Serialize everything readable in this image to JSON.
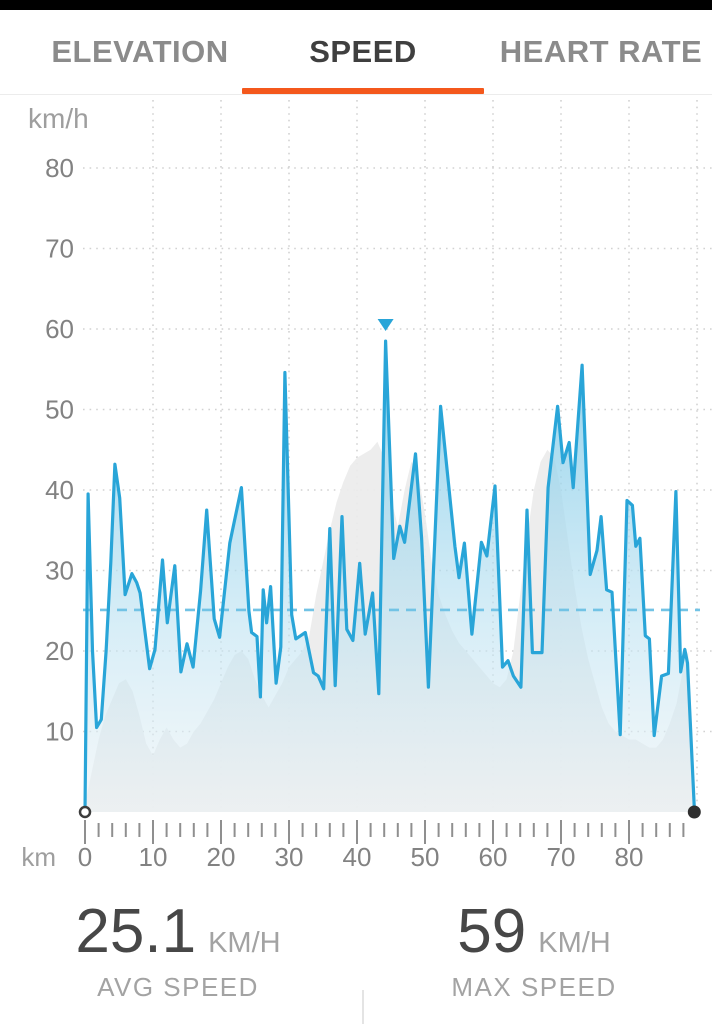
{
  "tabs": {
    "items": [
      {
        "label": "ELEVATION",
        "active": false
      },
      {
        "label": "SPEED",
        "active": true
      },
      {
        "label": "HEART RATE",
        "active": false
      }
    ]
  },
  "colors": {
    "accent_orange": "#f4581c",
    "line_blue": "#29a5d8",
    "fill_blue_top": "#7ecae8",
    "fill_blue_bottom": "#ecf2f5",
    "elevation_gray": "#ebebeb",
    "avg_dash_blue": "#72c3e5",
    "grid_gray": "#d2d2d2",
    "tick_gray": "#8f8f8f",
    "axis_text": "#828282",
    "unit_text": "#9e9e9e",
    "start_dot_stroke": "#3c3c3c",
    "end_dot_fill": "#2f2f2f"
  },
  "chart_data": {
    "type": "area",
    "title": "",
    "xlabel": "km",
    "ylabel": "km/h",
    "xlim": [
      0,
      89.6
    ],
    "ylim": [
      0,
      88
    ],
    "grid": "dotted",
    "y_ticks": [
      80,
      70,
      60,
      50,
      40,
      30,
      20,
      10
    ],
    "x_ticks": [
      0,
      10,
      20,
      30,
      40,
      50,
      60,
      70,
      80
    ],
    "x_minor_tick_step_km": 2,
    "x_minor_tick_max_km": 88,
    "avg_line_value": 25.1,
    "marker": {
      "name": "max-speed-marker",
      "km": 44.2,
      "value": 59
    },
    "start_point_km": 0,
    "end_point_km": 89.6,
    "series": [
      {
        "name": "elevation-ghost",
        "points": [
          [
            0,
            1
          ],
          [
            1,
            5
          ],
          [
            2,
            9
          ],
          [
            3,
            12
          ],
          [
            4,
            14
          ],
          [
            5,
            16
          ],
          [
            6,
            16.5
          ],
          [
            7,
            15
          ],
          [
            8,
            12
          ],
          [
            9,
            8.5
          ],
          [
            10,
            7
          ],
          [
            11,
            9
          ],
          [
            12,
            10.5
          ],
          [
            13,
            9
          ],
          [
            14,
            8
          ],
          [
            15,
            8.5
          ],
          [
            16,
            10
          ],
          [
            17,
            11
          ],
          [
            18,
            12.5
          ],
          [
            19,
            14
          ],
          [
            20,
            16
          ],
          [
            21,
            18
          ],
          [
            22,
            19.5
          ],
          [
            23,
            20
          ],
          [
            24,
            19
          ],
          [
            25,
            16.5
          ],
          [
            26,
            14.5
          ],
          [
            27,
            13
          ],
          [
            28,
            14.5
          ],
          [
            29,
            16
          ],
          [
            30,
            18
          ],
          [
            31,
            19
          ],
          [
            32,
            20
          ],
          [
            33,
            22
          ],
          [
            34,
            27
          ],
          [
            35,
            31
          ],
          [
            36,
            35
          ],
          [
            37,
            38.5
          ],
          [
            38,
            41
          ],
          [
            39,
            43
          ],
          [
            40,
            44
          ],
          [
            41,
            44.5
          ],
          [
            42,
            45
          ],
          [
            43,
            46
          ],
          [
            44,
            44
          ],
          [
            45,
            39
          ],
          [
            46,
            35.5
          ],
          [
            47,
            40
          ],
          [
            48,
            43.5
          ],
          [
            49,
            42
          ],
          [
            50,
            37
          ],
          [
            51,
            31
          ],
          [
            52,
            27
          ],
          [
            53,
            24.5
          ],
          [
            54,
            22.5
          ],
          [
            55,
            21
          ],
          [
            56,
            20
          ],
          [
            57,
            19
          ],
          [
            58,
            18
          ],
          [
            59,
            17
          ],
          [
            60,
            16
          ],
          [
            61,
            15.5
          ],
          [
            62,
            16.5
          ],
          [
            63,
            20
          ],
          [
            64,
            27
          ],
          [
            65,
            34
          ],
          [
            66,
            40
          ],
          [
            67,
            43.5
          ],
          [
            68,
            45
          ],
          [
            69,
            44
          ],
          [
            70,
            40
          ],
          [
            71,
            34
          ],
          [
            72,
            28
          ],
          [
            73,
            23
          ],
          [
            74,
            19
          ],
          [
            75,
            16
          ],
          [
            76,
            13
          ],
          [
            77,
            11
          ],
          [
            78,
            10
          ],
          [
            79,
            9.5
          ],
          [
            80,
            9
          ],
          [
            81,
            9
          ],
          [
            82,
            8.5
          ],
          [
            83,
            8
          ],
          [
            84,
            8
          ],
          [
            85,
            9
          ],
          [
            86,
            11
          ],
          [
            87,
            13.5
          ],
          [
            88,
            18
          ],
          [
            88.7,
            20
          ],
          [
            89.2,
            7
          ],
          [
            89.6,
            1
          ]
        ]
      },
      {
        "name": "speed",
        "points": [
          [
            0,
            0
          ],
          [
            0.45,
            39.5
          ],
          [
            1.1,
            20
          ],
          [
            1.7,
            10.5
          ],
          [
            2.4,
            11.5
          ],
          [
            3.1,
            20
          ],
          [
            3.8,
            31
          ],
          [
            4.4,
            43.2
          ],
          [
            5.1,
            39
          ],
          [
            5.9,
            27
          ],
          [
            6.9,
            29.6
          ],
          [
            7.6,
            28.5
          ],
          [
            8.1,
            27.2
          ],
          [
            9.5,
            17.8
          ],
          [
            10.3,
            20.2
          ],
          [
            11.4,
            31.3
          ],
          [
            12.1,
            23.5
          ],
          [
            13.2,
            30.6
          ],
          [
            14.1,
            17.4
          ],
          [
            15,
            20.9
          ],
          [
            15.9,
            18
          ],
          [
            17,
            27.5
          ],
          [
            17.9,
            37.5
          ],
          [
            19,
            24
          ],
          [
            19.8,
            21.7
          ],
          [
            21.3,
            33.4
          ],
          [
            23,
            40.3
          ],
          [
            24.1,
            25
          ],
          [
            24.5,
            22.3
          ],
          [
            25.3,
            21.8
          ],
          [
            25.8,
            14.3
          ],
          [
            26.2,
            27.6
          ],
          [
            26.7,
            23.5
          ],
          [
            27.3,
            28
          ],
          [
            28.1,
            16
          ],
          [
            28.8,
            20.5
          ],
          [
            29.4,
            54.6
          ],
          [
            30.4,
            24.5
          ],
          [
            31,
            21.5
          ],
          [
            31.7,
            21.9
          ],
          [
            32.4,
            22.3
          ],
          [
            33.6,
            17.3
          ],
          [
            34.3,
            16.9
          ],
          [
            35.1,
            15.3
          ],
          [
            36,
            35.2
          ],
          [
            36.8,
            15.7
          ],
          [
            37.8,
            36.7
          ],
          [
            38.5,
            22.7
          ],
          [
            39.4,
            21.3
          ],
          [
            40.4,
            30.9
          ],
          [
            41.2,
            22.1
          ],
          [
            42.3,
            27.2
          ],
          [
            43.2,
            14.7
          ],
          [
            44.2,
            58.5
          ],
          [
            45.4,
            31.5
          ],
          [
            46.3,
            35.5
          ],
          [
            47,
            33.5
          ],
          [
            48.6,
            44.5
          ],
          [
            49.5,
            34
          ],
          [
            50.5,
            15.5
          ],
          [
            52.3,
            50.4
          ],
          [
            54.4,
            33
          ],
          [
            55,
            29.1
          ],
          [
            55.8,
            33.4
          ],
          [
            56.9,
            22.1
          ],
          [
            58.3,
            33.5
          ],
          [
            59.1,
            31.8
          ],
          [
            60.3,
            40.5
          ],
          [
            61.4,
            18
          ],
          [
            62.2,
            18.8
          ],
          [
            63,
            16.9
          ],
          [
            64.1,
            15.5
          ],
          [
            65,
            37.5
          ],
          [
            65.8,
            19.8
          ],
          [
            67.2,
            19.8
          ],
          [
            68.1,
            40.3
          ],
          [
            69.5,
            50.4
          ],
          [
            70.3,
            43.4
          ],
          [
            71.2,
            45.9
          ],
          [
            71.8,
            40.3
          ],
          [
            73.1,
            55.5
          ],
          [
            74.3,
            29.5
          ],
          [
            75.3,
            32.5
          ],
          [
            75.9,
            36.7
          ],
          [
            76.7,
            27.6
          ],
          [
            77.5,
            27.3
          ],
          [
            78.7,
            9.6
          ],
          [
            79.7,
            38.7
          ],
          [
            80.5,
            38.1
          ],
          [
            81,
            33
          ],
          [
            81.6,
            34
          ],
          [
            82.4,
            21.9
          ],
          [
            83,
            21.5
          ],
          [
            83.7,
            9.5
          ],
          [
            84.8,
            16.9
          ],
          [
            85.8,
            17.2
          ],
          [
            86.9,
            39.8
          ],
          [
            87.6,
            17.4
          ],
          [
            88.2,
            20.2
          ],
          [
            88.6,
            18.5
          ],
          [
            89.6,
            0.5
          ]
        ]
      }
    ]
  },
  "stats": {
    "avg": {
      "value": "25.1",
      "unit": "KM/H",
      "label": "AVG SPEED"
    },
    "max": {
      "value": "59",
      "unit": "KM/H",
      "label": "MAX SPEED"
    }
  }
}
